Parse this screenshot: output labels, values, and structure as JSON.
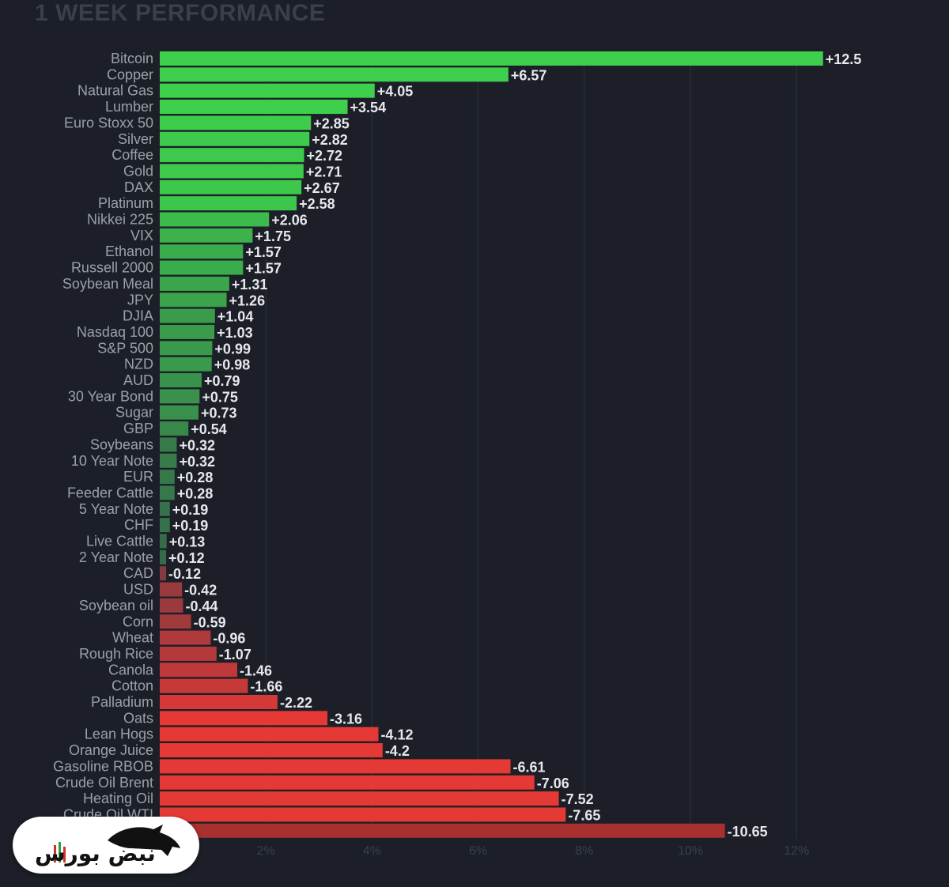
{
  "chart_data": {
    "type": "bar",
    "orientation": "horizontal",
    "title": "1 WEEK PERFORMANCE",
    "unit": "%",
    "xlim": [
      0,
      12
    ],
    "xticks": [
      "2%",
      "4%",
      "6%",
      "8%",
      "10%",
      "12%"
    ],
    "grid": true,
    "categories": [
      "Bitcoin",
      "Copper",
      "Natural Gas",
      "Lumber",
      "Euro Stoxx 50",
      "Silver",
      "Coffee",
      "Gold",
      "DAX",
      "Platinum",
      "Nikkei 225",
      "VIX",
      "Ethanol",
      "Russell 2000",
      "Soybean Meal",
      "JPY",
      "DJIA",
      "Nasdaq 100",
      "S&P 500",
      "NZD",
      "AUD",
      "30 Year Bond",
      "Sugar",
      "GBP",
      "Soybeans",
      "10 Year Note",
      "EUR",
      "Feeder Cattle",
      "5 Year Note",
      "CHF",
      "Live Cattle",
      "2 Year Note",
      "CAD",
      "USD",
      "Soybean oil",
      "Corn",
      "Wheat",
      "Rough Rice",
      "Canola",
      "Cotton",
      "Palladium",
      "Oats",
      "Lean Hogs",
      "Orange Juice",
      "Gasoline RBOB",
      "Crude Oil Brent",
      "Heating Oil",
      "Crude Oil WTI",
      ""
    ],
    "values": [
      12.5,
      6.57,
      4.05,
      3.54,
      2.85,
      2.82,
      2.72,
      2.71,
      2.67,
      2.58,
      2.06,
      1.75,
      1.57,
      1.57,
      1.31,
      1.26,
      1.04,
      1.03,
      0.99,
      0.98,
      0.79,
      0.75,
      0.73,
      0.54,
      0.32,
      0.32,
      0.28,
      0.28,
      0.19,
      0.19,
      0.13,
      0.12,
      -0.12,
      -0.42,
      -0.44,
      -0.59,
      -0.96,
      -1.07,
      -1.46,
      -1.66,
      -2.22,
      -3.16,
      -4.12,
      -4.2,
      -6.61,
      -7.06,
      -7.52,
      -7.65,
      -10.65
    ],
    "value_labels": [
      "+12.5",
      "+6.57",
      "+4.05",
      "+3.54",
      "+2.85",
      "+2.82",
      "+2.72",
      "+2.71",
      "+2.67",
      "+2.58",
      "+2.06",
      "+1.75",
      "+1.57",
      "+1.57",
      "+1.31",
      "+1.26",
      "+1.04",
      "+1.03",
      "+0.99",
      "+0.98",
      "+0.79",
      "+0.75",
      "+0.73",
      "+0.54",
      "+0.32",
      "+0.32",
      "+0.28",
      "+0.28",
      "+0.19",
      "+0.19",
      "+0.13",
      "+0.12",
      "-0.12",
      "-0.42",
      "-0.44",
      "-0.59",
      "-0.96",
      "-1.07",
      "-1.46",
      "-1.66",
      "-2.22",
      "-3.16",
      "-4.12",
      "-4.2",
      "-6.61",
      "-7.06",
      "-7.52",
      "-7.65",
      "-10.65"
    ],
    "colors": {
      "positive_strong": "#3ecf4c",
      "positive_weak": "#34524a",
      "negative_weak": "#6b3a44",
      "negative_strong": "#e53935"
    }
  },
  "watermark": {
    "text": "نبض بورس"
  }
}
